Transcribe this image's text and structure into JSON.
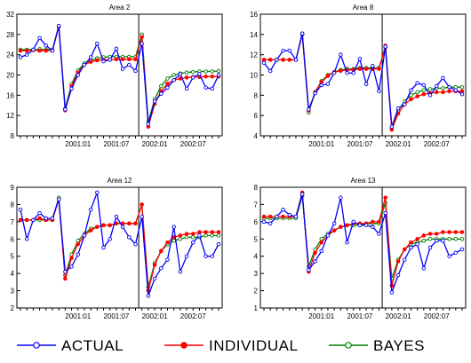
{
  "figure": {
    "legend_position": "bottom"
  },
  "chart_data": [
    {
      "type": "line",
      "title": "Area 2",
      "ylim": [
        8,
        32
      ],
      "yticks": [
        "8",
        "12",
        "16",
        "20",
        "24",
        "28",
        "32"
      ],
      "xtick_labels": [
        "2001:01",
        "2001:07",
        "2002:01",
        "2002:07"
      ],
      "x": [
        1,
        2,
        3,
        4,
        5,
        6,
        7,
        8,
        9,
        10,
        11,
        12,
        13,
        14,
        15,
        16,
        17,
        18,
        19,
        20,
        21,
        22,
        23,
        24,
        25,
        26,
        27,
        28,
        29,
        30,
        31,
        32
      ],
      "series": [
        {
          "name": "ACTUAL",
          "color": "#0000ff",
          "values": [
            23.5,
            24,
            25,
            27.3,
            25.8,
            24.8,
            29.7,
            13.2,
            17.3,
            20,
            22,
            23.5,
            26.2,
            22.7,
            23,
            25.2,
            21.2,
            22,
            20.8,
            26.2,
            10.3,
            14.8,
            16.3,
            17.5,
            19,
            20.2,
            17.3,
            19.5,
            20.2,
            17.5,
            17.3,
            20
          ]
        },
        {
          "name": "INDIVIDUAL",
          "color": "#ff0000",
          "values": [
            24.8,
            24.8,
            24.9,
            24.8,
            24.8,
            24.8,
            29.5,
            13,
            17.8,
            20.5,
            22,
            22.6,
            22.9,
            23,
            23,
            23.1,
            23.1,
            23.1,
            23.1,
            27.5,
            9.8,
            14.3,
            16.8,
            18.3,
            19,
            19.3,
            19.5,
            19.6,
            19.6,
            19.7,
            19.7,
            19.7
          ]
        },
        {
          "name": "BAYES",
          "color": "#008000",
          "values": [
            25,
            25,
            25,
            25.1,
            25,
            25,
            29.7,
            13.4,
            18.2,
            20.9,
            22.3,
            22.9,
            23.3,
            23.5,
            23.6,
            23.6,
            23.6,
            23.6,
            23.6,
            28,
            10.8,
            15.2,
            17.8,
            19.3,
            20,
            20.3,
            20.5,
            20.6,
            20.7,
            20.7,
            20.7,
            20.8
          ]
        }
      ]
    },
    {
      "type": "line",
      "title": "Area 8",
      "ylim": [
        4,
        16
      ],
      "yticks": [
        "4",
        "6",
        "8",
        "10",
        "12",
        "14",
        "16"
      ],
      "xtick_labels": [
        "2001:01",
        "2001:07",
        "2002:01",
        "2002:07"
      ],
      "x": [
        1,
        2,
        3,
        4,
        5,
        6,
        7,
        8,
        9,
        10,
        11,
        12,
        13,
        14,
        15,
        16,
        17,
        18,
        19,
        20,
        21,
        22,
        23,
        24,
        25,
        26,
        27,
        28,
        29,
        30,
        31,
        32
      ],
      "series": [
        {
          "name": "ACTUAL",
          "color": "#0000ff",
          "values": [
            11.2,
            10.4,
            11.5,
            12.4,
            12.4,
            11.5,
            14.1,
            6.6,
            8.2,
            9,
            9.1,
            10.2,
            12,
            10.2,
            10.2,
            11.6,
            9.1,
            10.9,
            8.4,
            12.8,
            4.9,
            6.7,
            7.1,
            8.5,
            9.2,
            9,
            8,
            8.9,
            9.7,
            8.8,
            8.5,
            8.1
          ]
        },
        {
          "name": "INDIVIDUAL",
          "color": "#ff0000",
          "values": [
            11.5,
            11.5,
            11.5,
            11.5,
            11.5,
            11.5,
            14.1,
            6.5,
            8.3,
            9.3,
            9.9,
            10.3,
            10.4,
            10.5,
            10.5,
            10.6,
            10.6,
            10.6,
            10.6,
            12.9,
            4.6,
            6.2,
            7.1,
            7.6,
            7.9,
            8.1,
            8.2,
            8.3,
            8.3,
            8.4,
            8.4,
            8.4
          ]
        },
        {
          "name": "BAYES",
          "color": "#008000",
          "values": [
            11.5,
            11.5,
            11.5,
            11.5,
            11.5,
            11.5,
            14,
            6.3,
            8.3,
            9.4,
            10,
            10.3,
            10.5,
            10.6,
            10.6,
            10.7,
            10.7,
            10.7,
            10.7,
            12.7,
            4.7,
            6.5,
            7.4,
            8,
            8.3,
            8.5,
            8.6,
            8.7,
            8.7,
            8.8,
            8.8,
            8.8
          ]
        }
      ]
    },
    {
      "type": "line",
      "title": "Area 12",
      "ylim": [
        2,
        9
      ],
      "yticks": [
        "2",
        "3",
        "4",
        "5",
        "6",
        "7",
        "8",
        "9"
      ],
      "xtick_labels": [
        "2001:01",
        "2001:07",
        "2002:01",
        "2002:07"
      ],
      "x": [
        1,
        2,
        3,
        4,
        5,
        6,
        7,
        8,
        9,
        10,
        11,
        12,
        13,
        14,
        15,
        16,
        17,
        18,
        19,
        20,
        21,
        22,
        23,
        24,
        25,
        26,
        27,
        28,
        29,
        30,
        31,
        32
      ],
      "series": [
        {
          "name": "ACTUAL",
          "color": "#0000ff",
          "values": [
            7.7,
            6,
            7.1,
            7.5,
            7.2,
            7.2,
            8.3,
            4.1,
            4.4,
            5.1,
            6.2,
            7.7,
            8.7,
            5.5,
            6,
            7.3,
            6.7,
            6.1,
            5.7,
            7.3,
            2.7,
            3.7,
            4.3,
            4.8,
            6.7,
            4.1,
            5,
            5.8,
            6.2,
            5,
            5,
            5.7
          ]
        },
        {
          "name": "INDIVIDUAL",
          "color": "#ff0000",
          "values": [
            7.1,
            7.1,
            7.1,
            7.2,
            7.1,
            7.1,
            8.3,
            3.7,
            4.9,
            5.7,
            6.2,
            6.5,
            6.7,
            6.8,
            6.8,
            6.9,
            6.9,
            6.9,
            6.9,
            8,
            3,
            4.5,
            5.3,
            5.8,
            6.1,
            6.2,
            6.3,
            6.3,
            6.4,
            6.4,
            6.4,
            6.4
          ]
        },
        {
          "name": "BAYES",
          "color": "#008000",
          "values": [
            7.1,
            7.1,
            7.1,
            7.1,
            7.1,
            7.1,
            8.4,
            3.9,
            5.1,
            5.9,
            6.3,
            6.6,
            6.7,
            6.8,
            6.8,
            6.9,
            6.9,
            6.9,
            6.9,
            8,
            3.2,
            4.6,
            5.3,
            5.7,
            5.9,
            6,
            6.1,
            6.1,
            6.1,
            6.2,
            6.2,
            6.2
          ]
        }
      ]
    },
    {
      "type": "line",
      "title": "Area 13",
      "ylim": [
        1,
        8
      ],
      "yticks": [
        "1",
        "2",
        "3",
        "4",
        "5",
        "6",
        "7",
        "8"
      ],
      "xtick_labels": [
        "2001:01",
        "2001:07",
        "2002:01",
        "2002:07"
      ],
      "x": [
        1,
        2,
        3,
        4,
        5,
        6,
        7,
        8,
        9,
        10,
        11,
        12,
        13,
        14,
        15,
        16,
        17,
        18,
        19,
        20,
        21,
        22,
        23,
        24,
        25,
        26,
        27,
        28,
        29,
        30,
        31,
        32
      ],
      "series": [
        {
          "name": "ACTUAL",
          "color": "#0000ff",
          "values": [
            6,
            5.9,
            6.3,
            6.7,
            6.4,
            6.3,
            7.6,
            3.2,
            3.7,
            4.3,
            5.2,
            5.9,
            7.4,
            4.8,
            6,
            5.8,
            5.8,
            5.7,
            5.3,
            6.5,
            1.9,
            2.9,
            3.8,
            4.5,
            4.7,
            3.3,
            4.5,
            4.9,
            4.9,
            4,
            4.2,
            4.4
          ]
        },
        {
          "name": "INDIVIDUAL",
          "color": "#ff0000",
          "values": [
            6.3,
            6.3,
            6.3,
            6.3,
            6.3,
            6.3,
            7.7,
            3.1,
            4.2,
            4.8,
            5.2,
            5.5,
            5.7,
            5.8,
            5.9,
            5.9,
            5.9,
            6,
            6,
            7.4,
            2.3,
            3.7,
            4.4,
            4.8,
            5,
            5.2,
            5.3,
            5.3,
            5.4,
            5.4,
            5.4,
            5.4
          ]
        },
        {
          "name": "BAYES",
          "color": "#008000",
          "values": [
            6.2,
            6.2,
            6.2,
            6.2,
            6.2,
            6.2,
            7.5,
            3.4,
            4.4,
            5,
            5.3,
            5.5,
            5.7,
            5.8,
            5.8,
            5.8,
            5.9,
            5.9,
            5.9,
            7.1,
            2.7,
            3.8,
            4.4,
            4.7,
            4.8,
            4.9,
            5,
            5,
            5,
            5,
            5,
            5
          ]
        }
      ]
    }
  ]
}
